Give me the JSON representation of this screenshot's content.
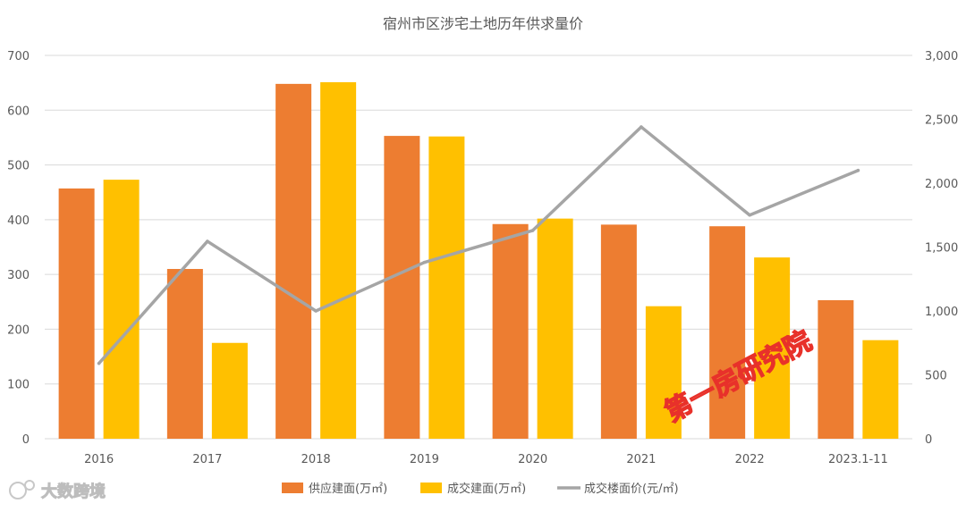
{
  "chart_data": {
    "type": "bar",
    "title": "宿州市区涉宅土地历年供求量价",
    "categories": [
      "2016",
      "2017",
      "2018",
      "2019",
      "2020",
      "2021",
      "2022",
      "2023.1-11"
    ],
    "series": [
      {
        "name": "供应建面(万㎡)",
        "type": "bar",
        "axis": "left",
        "color": "#ED7D31",
        "values": [
          457,
          310,
          648,
          553,
          392,
          391,
          388,
          253
        ]
      },
      {
        "name": "成交建面(万㎡)",
        "type": "bar",
        "axis": "left",
        "color": "#FFC000",
        "values": [
          473,
          175,
          651,
          552,
          402,
          242,
          331,
          180
        ]
      },
      {
        "name": "成交楼面价(元/㎡)",
        "type": "line",
        "axis": "right",
        "color": "#A5A5A5",
        "values": [
          590,
          1545,
          1000,
          1380,
          1630,
          2440,
          1750,
          2100
        ]
      }
    ],
    "y_left": {
      "range": [
        0,
        700
      ],
      "ticks": [
        0,
        100,
        200,
        300,
        400,
        500,
        600,
        700
      ],
      "tick_labels": [
        "0",
        "100",
        "200",
        "300",
        "400",
        "500",
        "600",
        "700"
      ]
    },
    "y_right": {
      "range": [
        0,
        3000
      ],
      "ticks": [
        0,
        500,
        1000,
        1500,
        2000,
        2500,
        3000
      ],
      "tick_labels": [
        "0",
        "500",
        "1,000",
        "1,500",
        "2,000",
        "2,500",
        "3,000"
      ]
    },
    "grid": true,
    "legend_position": "bottom"
  },
  "watermarks": {
    "stamp_text": "第一房研究院",
    "logo_text": "大数跨境"
  },
  "colors": {
    "grid": "#D9D9D9",
    "axis_text": "#595959",
    "title_text": "#595959",
    "stamp": "#E8312A"
  }
}
